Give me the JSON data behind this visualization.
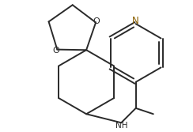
{
  "background": "#ffffff",
  "line_color": "#2a2a2a",
  "N_color": "#8B6000",
  "lw": 1.4,
  "fs": 8.0,
  "xlim": [
    0.0,
    1.0
  ],
  "ylim": [
    0.0,
    1.0
  ]
}
